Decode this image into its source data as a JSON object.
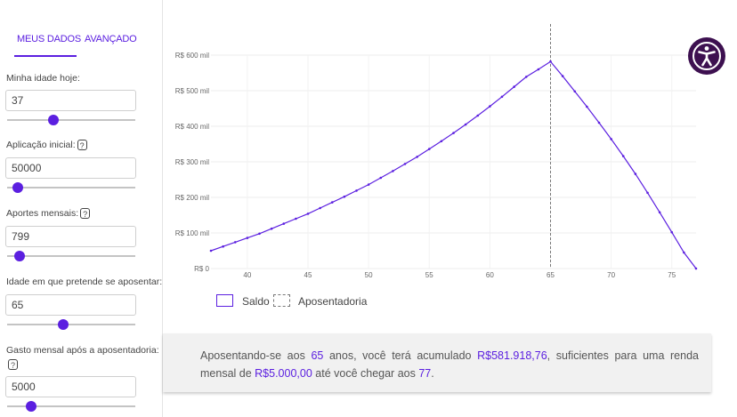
{
  "tabs": {
    "my_data": "MEUS DADOS",
    "advanced": "AVANÇADO"
  },
  "fields": {
    "age": {
      "label": "Minha idade hoje:",
      "value": "37",
      "slider_pct": 0.36
    },
    "initial": {
      "label": "Aplicação inicial:",
      "value": "50000",
      "slider_pct": 0.08
    },
    "monthly": {
      "label": "Aportes mensais:",
      "value": "799",
      "slider_pct": 0.1
    },
    "retire_age": {
      "label": "Idade em que pretende se aposentar:",
      "value": "65",
      "slider_pct": 0.44
    },
    "spend": {
      "label": "Gasto mensal após a aposentadoria:",
      "value": "5000",
      "slider_pct": 0.19
    }
  },
  "help_glyph": "?",
  "accent_color": "#5b1fe0",
  "legend": {
    "saldo": "Saldo",
    "aposentadoria": "Aposentadoria"
  },
  "summary": {
    "t1": "Aposentando-se aos ",
    "age": "65",
    "t2": " anos, você terá acumulado ",
    "amount": "R$581.918,76",
    "t3": ", suficientes para uma renda mensal de ",
    "income": "R$5.000,00",
    "t4": " até você chegar aos ",
    "end_age": "77",
    "t5": "."
  },
  "accessibility_icon": "accessibility-icon",
  "chart_data": {
    "type": "line",
    "x_ticks": [
      "40",
      "45",
      "50",
      "55",
      "60",
      "65",
      "70",
      "75"
    ],
    "y_ticks": [
      "R$ 0",
      "R$ 100 mil",
      "R$ 200 mil",
      "R$ 300 mil",
      "R$ 400 mil",
      "R$ 500 mil",
      "R$ 600 mil"
    ],
    "xlim": [
      37,
      77
    ],
    "ylim": [
      0,
      600000
    ],
    "retirement_x": 65,
    "series": [
      {
        "name": "Saldo",
        "x": [
          37,
          38,
          39,
          40,
          41,
          42,
          43,
          44,
          45,
          46,
          47,
          48,
          49,
          50,
          51,
          52,
          53,
          54,
          55,
          56,
          57,
          58,
          59,
          60,
          61,
          62,
          63,
          64,
          65,
          66,
          67,
          68,
          69,
          70,
          71,
          72,
          73,
          74,
          75,
          76,
          77
        ],
        "values": [
          50000,
          62000,
          74000,
          86000,
          98000,
          112000,
          126000,
          140000,
          154000,
          170000,
          186000,
          202000,
          219000,
          236000,
          255000,
          274000,
          294000,
          314000,
          336000,
          358000,
          381000,
          405000,
          430000,
          456000,
          483000,
          511000,
          539000,
          560000,
          581919,
          541000,
          498000,
          455000,
          410000,
          364000,
          316000,
          266000,
          213000,
          158000,
          102000,
          45000,
          0
        ]
      }
    ]
  }
}
